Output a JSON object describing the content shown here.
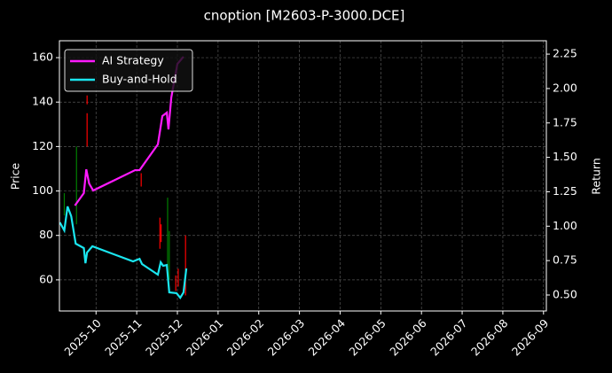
{
  "chart_data": {
    "type": "line",
    "title": "cnoption [M2603-P-3000.DCE]",
    "y_label": "Price",
    "y2_label": "Return",
    "background": "#000000",
    "grid": true,
    "legend": "upper left",
    "xlim": [
      -0.9,
      11.07
    ],
    "xticks": [
      {
        "value": 0,
        "label": "2025-10"
      },
      {
        "value": 1,
        "label": "2025-11"
      },
      {
        "value": 2,
        "label": "2025-12"
      },
      {
        "value": 3,
        "label": "2026-01"
      },
      {
        "value": 4,
        "label": "2026-02"
      },
      {
        "value": 5,
        "label": "2026-03"
      },
      {
        "value": 6,
        "label": "2026-04"
      },
      {
        "value": 7,
        "label": "2026-05"
      },
      {
        "value": 8,
        "label": "2026-06"
      },
      {
        "value": 9,
        "label": "2026-07"
      },
      {
        "value": 10,
        "label": "2026-08"
      },
      {
        "value": 11,
        "label": "2026-09"
      }
    ],
    "ylim": [
      46,
      167.6
    ],
    "yticks": [
      60,
      80,
      100,
      120,
      140,
      160
    ],
    "y2lim": [
      0.384,
      2.347
    ],
    "y2ticks": [
      {
        "value": 0.5,
        "label": "0.50"
      },
      {
        "value": 0.75,
        "label": "0.75"
      },
      {
        "value": 1.0,
        "label": "1.00"
      },
      {
        "value": 1.25,
        "label": "1.25"
      },
      {
        "value": 1.5,
        "label": "1.50"
      },
      {
        "value": 1.75,
        "label": "1.75"
      },
      {
        "value": 2.0,
        "label": "2.00"
      },
      {
        "value": 2.25,
        "label": "2.25"
      }
    ],
    "candles": {
      "x": [
        -0.78,
        -0.48,
        -0.22,
        -0.22,
        1.11,
        1.57,
        1.6,
        1.76,
        1.8,
        1.96,
        2.02,
        2.2
      ],
      "low": [
        89,
        85,
        120,
        139,
        102,
        74,
        77,
        65,
        60,
        55,
        57,
        53
      ],
      "high": [
        99,
        120,
        135,
        143,
        108,
        88,
        85,
        97,
        82,
        62,
        65,
        80
      ],
      "colors": [
        "#008000",
        "#008000",
        "#ff0000",
        "#ff0000",
        "#ff0000",
        "#ff0000",
        "#ff0000",
        "#008000",
        "#008000",
        "#ff0000",
        "#ff0000",
        "#ff0000"
      ]
    },
    "series": [
      {
        "name": "AI Strategy",
        "color": "#ff1aff",
        "axis": "y2",
        "x": [
          -0.52,
          -0.3,
          -0.24,
          -0.17,
          -0.07,
          0.96,
          1.07,
          1.52,
          1.63,
          1.74,
          1.78,
          1.85,
          2.0,
          2.15
        ],
        "values": [
          1.15,
          1.24,
          1.413,
          1.31,
          1.259,
          1.407,
          1.407,
          1.594,
          1.8,
          1.825,
          1.703,
          1.935,
          2.179,
          2.231
        ]
      },
      {
        "name": "Buy-and-Hold",
        "color": "#1ae6f0",
        "axis": "y2",
        "x": [
          -0.89,
          -0.78,
          -0.7,
          -0.61,
          -0.5,
          -0.3,
          -0.26,
          -0.22,
          -0.09,
          0.91,
          1.07,
          1.13,
          1.52,
          1.59,
          1.65,
          1.74,
          1.8,
          1.98,
          2.07,
          2.15,
          2.22
        ],
        "values": [
          1.027,
          0.969,
          1.143,
          1.072,
          0.873,
          0.841,
          0.731,
          0.809,
          0.854,
          0.744,
          0.763,
          0.725,
          0.648,
          0.738,
          0.712,
          0.718,
          0.519,
          0.513,
          0.48,
          0.519,
          0.693
        ]
      }
    ]
  }
}
